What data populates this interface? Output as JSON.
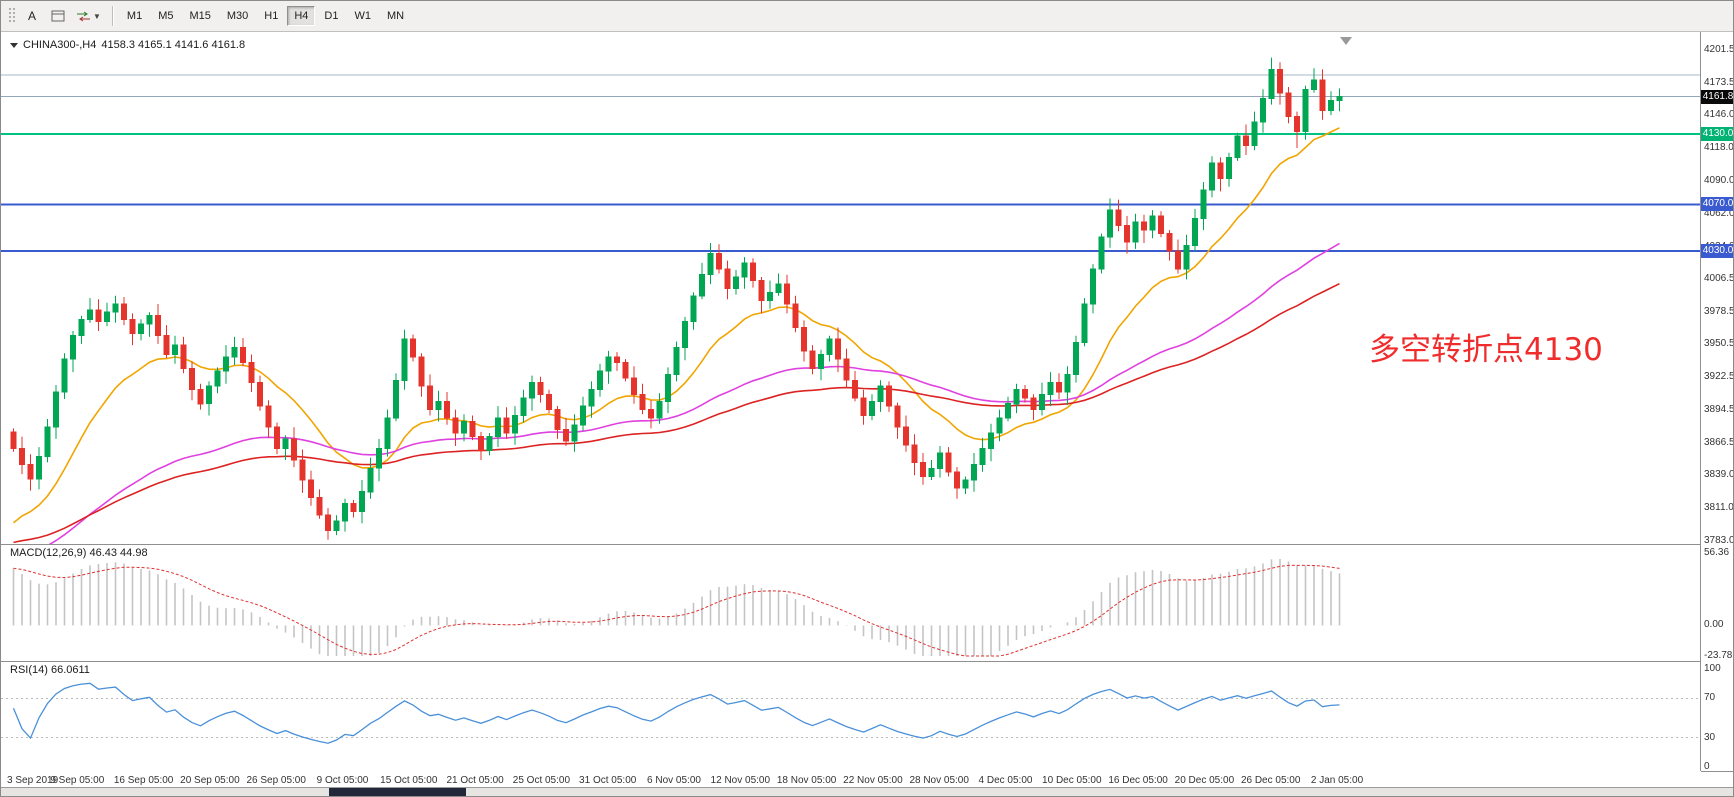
{
  "toolbar": {
    "letter_tool": "A",
    "timeframes": [
      "M1",
      "M5",
      "M15",
      "M30",
      "H1",
      "H4",
      "D1",
      "W1",
      "MN"
    ],
    "active_timeframe": "H4"
  },
  "chart": {
    "symbol_label": "CHINA300-,H4",
    "ohlc_label": "4158.3 4165.1 4141.6 4161.8",
    "annotation_text": "多空转折点4130",
    "annotation_color": "#f02c2c",
    "levels": [
      {
        "price": 4180.0,
        "line_color": "#a3b8c8",
        "line_width": 1,
        "badge_label": "",
        "badge_color": ""
      },
      {
        "price": 4161.8,
        "line_color": "#93a7b7",
        "line_width": 1,
        "badge_label": "4161.8",
        "badge_color": "#0a0a0a"
      },
      {
        "price": 4130.0,
        "line_color": "#00c37f",
        "line_width": 2,
        "badge_label": "4130.0",
        "badge_color": "#00b273"
      },
      {
        "price": 4070.0,
        "line_color": "#3a5bd0",
        "line_width": 2,
        "badge_label": "4070.0",
        "badge_color": "#3a5bd0"
      },
      {
        "price": 4030.0,
        "line_color": "#3a5bd0",
        "line_width": 2,
        "badge_label": "4030.0",
        "badge_color": "#3a5bd0"
      }
    ]
  },
  "indicators": {
    "macd_display": "MACD(12,26,9) 46.43 44.98",
    "rsi_display": "RSI(14) 66.0611",
    "macd_scale_labels": [
      "56.36",
      "0.00",
      "-23.78"
    ],
    "rsi_scale_labels": [
      "100",
      "70",
      "30",
      "0"
    ]
  },
  "chart_data": {
    "type": "candlestick",
    "symbol": "CHINA300-",
    "timeframe": "H4",
    "last_ohlc": {
      "open": 4158.3,
      "high": 4165.1,
      "low": 4141.6,
      "close": 4161.8
    },
    "price_axis": {
      "max": 4201.5,
      "min": 3783.0
    },
    "price_ticks": [
      "4201.5",
      "4173.5",
      "4146.0",
      "4118.0",
      "4090.0",
      "4062.0",
      "4034.0",
      "4006.5",
      "3978.5",
      "3950.5",
      "3922.5",
      "3894.5",
      "3866.5",
      "3839.0",
      "3811.0",
      "3783.0"
    ],
    "first_open": 3876,
    "closes": [
      3862,
      3848,
      3836,
      3855,
      3880,
      3910,
      3938,
      3958,
      3972,
      3980,
      3970,
      3978,
      3985,
      3972,
      3960,
      3968,
      3975,
      3958,
      3942,
      3950,
      3930,
      3912,
      3900,
      3915,
      3928,
      3940,
      3948,
      3935,
      3918,
      3898,
      3880,
      3862,
      3870,
      3852,
      3835,
      3820,
      3805,
      3792,
      3800,
      3815,
      3808,
      3825,
      3845,
      3862,
      3888,
      3920,
      3955,
      3940,
      3915,
      3895,
      3902,
      3888,
      3875,
      3885,
      3872,
      3860,
      3872,
      3888,
      3875,
      3890,
      3905,
      3918,
      3908,
      3895,
      3878,
      3868,
      3882,
      3898,
      3912,
      3928,
      3940,
      3935,
      3922,
      3908,
      3895,
      3888,
      3902,
      3925,
      3948,
      3970,
      3992,
      4010,
      4028,
      4015,
      3998,
      4008,
      4020,
      4005,
      3988,
      3995,
      4002,
      3985,
      3965,
      3945,
      3930,
      3942,
      3955,
      3938,
      3920,
      3905,
      3890,
      3902,
      3915,
      3898,
      3880,
      3865,
      3850,
      3838,
      3845,
      3858,
      3842,
      3828,
      3835,
      3848,
      3862,
      3875,
      3888,
      3900,
      3912,
      3905,
      3895,
      3908,
      3918,
      3910,
      3925,
      3952,
      3985,
      4015,
      4042,
      4065,
      4052,
      4038,
      4055,
      4048,
      4060,
      4045,
      4030,
      4015,
      4035,
      4058,
      4082,
      4105,
      4092,
      4110,
      4128,
      4120,
      4140,
      4160,
      4185,
      4165,
      4145,
      4132,
      4168,
      4176,
      4150,
      4158.3,
      4161.8
    ],
    "wick_overrides": {
      "2": {
        "low": 3826
      },
      "46": {
        "high": 3963
      },
      "148": {
        "high": 4195
      },
      "151": {
        "low": 4118
      }
    },
    "time_labels": [
      "3 Sep 2019",
      "9 Sep 05:00",
      "16 Sep 05:00",
      "20 Sep 05:00",
      "26 Sep 05:00",
      "9 Oct 05:00",
      "15 Oct 05:00",
      "21 Oct 05:00",
      "25 Oct 05:00",
      "31 Oct 05:00",
      "6 Nov 05:00",
      "12 Nov 05:00",
      "18 Nov 05:00",
      "22 Nov 05:00",
      "28 Nov 05:00",
      "4 Dec 05:00",
      "10 Dec 05:00",
      "16 Dec 05:00",
      "20 Dec 05:00",
      "26 Dec 05:00",
      "2 Jan 05:00"
    ],
    "macd": {
      "params": [
        12,
        26,
        9
      ],
      "value": 46.43,
      "signal": 44.98,
      "scale_max": 56.36,
      "scale_min": -23.78
    },
    "rsi": {
      "period": 14,
      "value": 66.0611,
      "levels": [
        70,
        30
      ],
      "scale": [
        0,
        100
      ]
    },
    "moving_averages": [
      {
        "name": "fast-ma",
        "color": "#f0a500",
        "period": 16,
        "seed": 3790
      },
      {
        "name": "medium-ma",
        "color": "#e040e0",
        "period": 60,
        "seed": 3765
      },
      {
        "name": "slow-ma",
        "color": "#dd2222",
        "period": 90,
        "seed": 3780
      }
    ],
    "colors": {
      "up": "#00a651",
      "down": "#e5342c",
      "macd_hist": "#c4c4c4",
      "macd_signal": "#e03131",
      "rsi_line": "#4a90d9"
    }
  }
}
